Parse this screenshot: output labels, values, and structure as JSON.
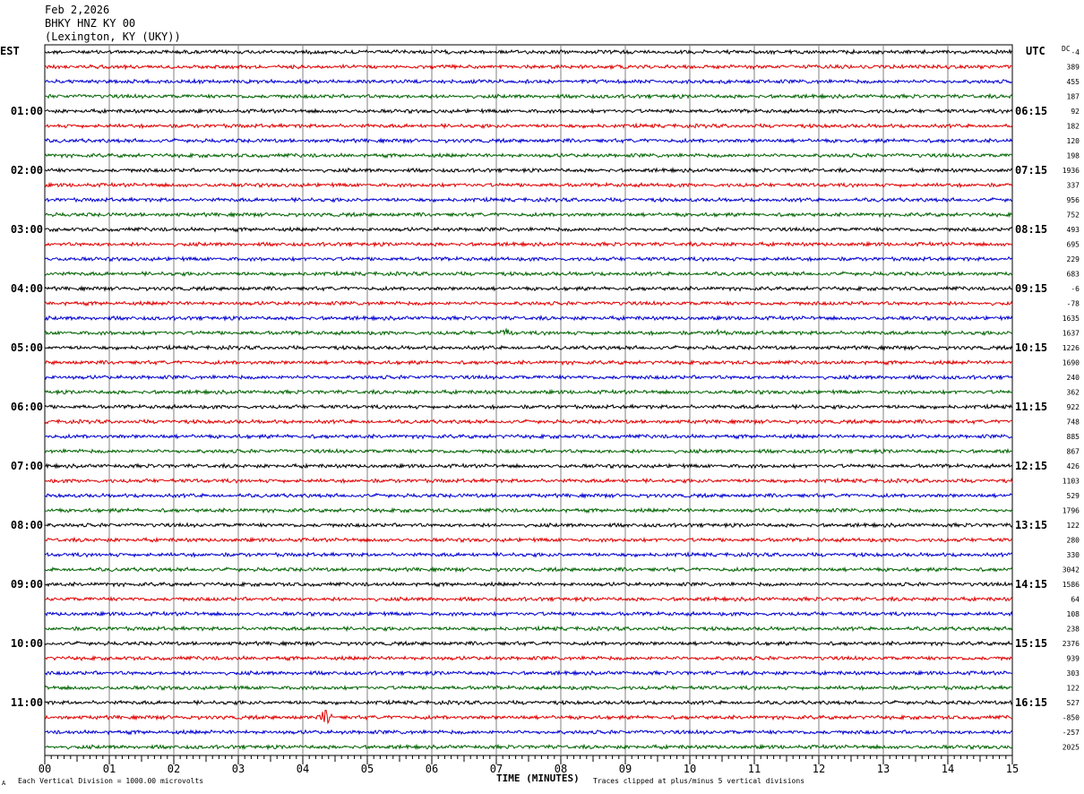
{
  "header": {
    "date": "Feb 2,2026",
    "station": "BHKY HNZ KY 00",
    "location": "(Lexington, KY (UKY))"
  },
  "left_tz": "EST",
  "right_tz": "UTC",
  "dc_label": "DC",
  "footer": {
    "scale_note": "Each Vertical Division = 1000.00 microvolts",
    "clip_note": "Traces clipped at plus/minus 5 vertical divisions",
    "corner_mark": "A"
  },
  "colors": {
    "cycle": [
      "#000000",
      "#e00000",
      "#0000d0",
      "#006400"
    ],
    "grid": "#808080"
  },
  "chart_data": {
    "type": "line",
    "title": "",
    "xlabel": "TIME (MINUTES)",
    "xlim": [
      0,
      15
    ],
    "x_ticks": [
      "00",
      "01",
      "02",
      "03",
      "04",
      "05",
      "06",
      "07",
      "08",
      "09",
      "10",
      "11",
      "12",
      "13",
      "14",
      "15"
    ],
    "left_hour_labels": [
      "01:00",
      "02:00",
      "03:00",
      "04:00",
      "05:00",
      "06:00",
      "07:00",
      "08:00",
      "09:00",
      "10:00",
      "11:00"
    ],
    "right_hour_labels": [
      "06:15",
      "07:15",
      "08:15",
      "09:15",
      "10:15",
      "11:15",
      "12:15",
      "13:15",
      "14:15",
      "15:15",
      "16:15"
    ],
    "trace_count": 48,
    "trace_dc_offsets": [
      "-4",
      "389",
      "455",
      "187",
      "92",
      "182",
      "120",
      "198",
      "1936",
      "337",
      "956",
      "752",
      "493",
      "695",
      "229",
      "683",
      "-6",
      "-78",
      "1635",
      "1637",
      "1226",
      "1690",
      "240",
      "362",
      "922",
      "748",
      "885",
      "867",
      "426",
      "1103",
      "529",
      "1796",
      "122",
      "280",
      "330",
      "3042",
      "1586",
      "64",
      "108",
      "238",
      "2376",
      "939",
      "303",
      "122",
      "527",
      "-850",
      "-257",
      "2025"
    ],
    "events": [
      {
        "trace": 45,
        "minute": 4.35,
        "amplitude": "large"
      },
      {
        "trace": 19,
        "minute": 7.15,
        "amplitude": "small"
      },
      {
        "trace": 19,
        "minute": 10.4,
        "amplitude": "small"
      }
    ]
  }
}
